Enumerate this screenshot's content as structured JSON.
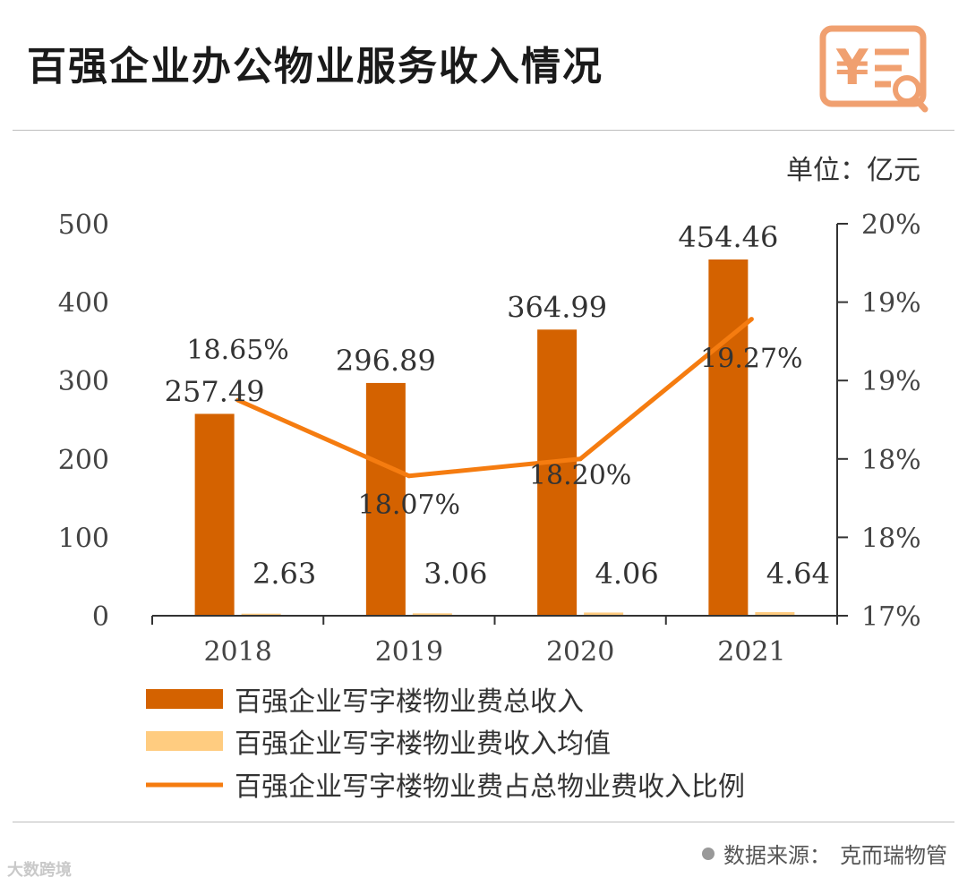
{
  "header": {
    "title": "百强企业办公物业服务收入情况",
    "icon": "receipt-search-icon"
  },
  "unit": "单位：亿元",
  "source": {
    "label": "数据来源：",
    "value": "克而瑞物管"
  },
  "watermark": "大数跨境",
  "colors": {
    "bar_total": "#D46200",
    "bar_avg": "#FFCC80",
    "line": "#F57C10",
    "icon": "#F0A070"
  },
  "chart_data": {
    "type": "bar",
    "categories": [
      "2018",
      "2019",
      "2020",
      "2021"
    ],
    "left_axis": {
      "ticks": [
        "0",
        "100",
        "200",
        "300",
        "400",
        "500"
      ],
      "range": [
        0,
        500
      ]
    },
    "right_axis": {
      "ticks": [
        "17%",
        "18%",
        "18%",
        "19%",
        "19%",
        "20%"
      ],
      "range": [
        17.0,
        20.0
      ]
    },
    "series": [
      {
        "name": "百强企业写字楼物业费总收入",
        "type": "bar",
        "axis": "left",
        "values": [
          257.49,
          296.89,
          364.99,
          454.46
        ],
        "labels": [
          "257.49",
          "296.89",
          "364.99",
          "454.46"
        ]
      },
      {
        "name": "百强企业写字楼物业费收入均值",
        "type": "bar",
        "axis": "left",
        "values": [
          2.63,
          3.06,
          4.06,
          4.64
        ],
        "labels": [
          "2.63",
          "3.06",
          "4.06",
          "4.64"
        ]
      },
      {
        "name": "百强企业写字楼物业费占总物业费收入比例",
        "type": "line",
        "axis": "right",
        "values": [
          18.65,
          18.07,
          18.2,
          19.27
        ],
        "labels": [
          "18.65%",
          "18.07%",
          "18.20%",
          "19.27%"
        ]
      }
    ],
    "grid": false,
    "legend": "bottom"
  }
}
